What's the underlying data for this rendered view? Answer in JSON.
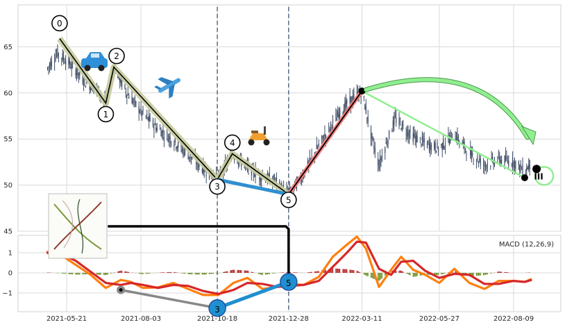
{
  "chart_data": [
    {
      "type": "candlestick",
      "title": "",
      "xlabel": "",
      "ylabel": "",
      "xlim": [
        "2021-04-26",
        "2022-09-05"
      ],
      "ylim": [
        45,
        70
      ],
      "yticks": [
        45,
        50,
        55,
        60,
        65
      ],
      "xticks": [
        "2021-05-21",
        "2021-08-03",
        "2021-10-18",
        "2021-12-28",
        "2022-03-11",
        "2022-05-27",
        "2022-08-09"
      ],
      "grid": true,
      "price_path": [
        [
          "2021-05-01",
          62.5
        ],
        [
          "2021-05-12",
          64.3
        ],
        [
          "2021-05-21",
          63.5
        ],
        [
          "2021-05-31",
          62.3
        ],
        [
          "2021-06-10",
          61.0
        ],
        [
          "2021-06-20",
          60.5
        ],
        [
          "2021-06-30",
          58.9
        ],
        [
          "2021-07-07",
          62.8
        ],
        [
          "2021-07-20",
          60.0
        ],
        [
          "2021-08-03",
          58.0
        ],
        [
          "2021-08-18",
          56.3
        ],
        [
          "2021-09-02",
          55.0
        ],
        [
          "2021-09-17",
          53.5
        ],
        [
          "2021-10-02",
          52.0
        ],
        [
          "2021-10-18",
          50.6
        ],
        [
          "2021-11-02",
          53.4
        ],
        [
          "2021-11-16",
          52.0
        ],
        [
          "2021-11-30",
          51.0
        ],
        [
          "2021-12-14",
          50.5
        ],
        [
          "2021-12-28",
          49.0
        ],
        [
          "2022-01-12",
          51.2
        ],
        [
          "2022-01-27",
          54.3
        ],
        [
          "2022-02-10",
          56.7
        ],
        [
          "2022-02-24",
          58.8
        ],
        [
          "2022-03-11",
          60.2
        ],
        [
          "2022-03-20",
          55.5
        ],
        [
          "2022-03-28",
          52.2
        ],
        [
          "2022-04-13",
          57.2
        ],
        [
          "2022-04-28",
          55.5
        ],
        [
          "2022-05-13",
          54.5
        ],
        [
          "2022-05-27",
          54.0
        ],
        [
          "2022-06-11",
          55.5
        ],
        [
          "2022-06-26",
          53.5
        ],
        [
          "2022-07-11",
          52.2
        ],
        [
          "2022-07-25",
          52.8
        ],
        [
          "2022-08-09",
          52.5
        ],
        [
          "2022-08-20",
          51.5
        ],
        [
          "2022-08-27",
          52.5
        ]
      ],
      "elliott_wave": {
        "points": [
          {
            "label": "0",
            "date": "2021-05-14",
            "price": 65.9
          },
          {
            "label": "1",
            "date": "2021-06-29",
            "price": 58.9
          },
          {
            "label": "2",
            "date": "2021-07-07",
            "price": 62.8
          },
          {
            "label": "3",
            "date": "2021-10-18",
            "price": 50.6
          },
          {
            "label": "4",
            "date": "2021-11-02",
            "price": 53.4
          },
          {
            "label": "5",
            "date": "2021-12-28",
            "price": 49.0
          }
        ],
        "correction": [
          {
            "date": "2021-12-28",
            "price": 49.0
          },
          {
            "date": "2022-03-11",
            "price": 60.2
          },
          {
            "date": "2022-08-20",
            "price": 50.8
          }
        ],
        "end_label": "III",
        "vertical_markers": [
          "2021-10-18",
          "2021-12-28"
        ]
      }
    },
    {
      "type": "macd",
      "title": "MACD (12,26,9)",
      "ylim": [
        -1.8,
        1.8
      ],
      "yticks": [
        -1,
        0,
        1
      ],
      "macd": [
        [
          "2021-05-01",
          1.05
        ],
        [
          "2021-05-15",
          0.9
        ],
        [
          "2021-05-30",
          0.4
        ],
        [
          "2021-06-14",
          -0.1
        ],
        [
          "2021-06-29",
          -0.75
        ],
        [
          "2021-07-14",
          -0.35
        ],
        [
          "2021-07-24",
          -0.45
        ],
        [
          "2021-08-05",
          -0.75
        ],
        [
          "2021-08-20",
          -0.72
        ],
        [
          "2021-09-04",
          -0.5
        ],
        [
          "2021-09-19",
          -0.8
        ],
        [
          "2021-10-04",
          -1.1
        ],
        [
          "2021-10-19",
          -1.1
        ],
        [
          "2021-11-03",
          -0.5
        ],
        [
          "2021-11-17",
          -0.25
        ],
        [
          "2021-12-02",
          -0.8
        ],
        [
          "2021-12-17",
          -0.7
        ],
        [
          "2021-12-28",
          -0.55
        ],
        [
          "2022-01-12",
          -0.6
        ],
        [
          "2022-01-27",
          -0.2
        ],
        [
          "2022-02-10",
          0.8
        ],
        [
          "2022-02-24",
          1.4
        ],
        [
          "2022-03-06",
          1.8
        ],
        [
          "2022-03-15",
          1.2
        ],
        [
          "2022-03-28",
          -0.7
        ],
        [
          "2022-04-09",
          0.15
        ],
        [
          "2022-04-19",
          0.8
        ],
        [
          "2022-05-01",
          0.15
        ],
        [
          "2022-05-13",
          -0.1
        ],
        [
          "2022-05-27",
          -0.5
        ],
        [
          "2022-06-11",
          0.2
        ],
        [
          "2022-06-26",
          -0.5
        ],
        [
          "2022-07-11",
          -0.8
        ],
        [
          "2022-07-25",
          -0.4
        ],
        [
          "2022-08-09",
          -0.4
        ],
        [
          "2022-08-20",
          -0.45
        ],
        [
          "2022-08-27",
          -0.3
        ]
      ],
      "signal": [
        [
          "2021-05-01",
          1.0
        ],
        [
          "2021-05-15",
          0.95
        ],
        [
          "2021-05-30",
          0.6
        ],
        [
          "2021-06-14",
          0.05
        ],
        [
          "2021-06-29",
          -0.5
        ],
        [
          "2021-07-14",
          -0.6
        ],
        [
          "2021-07-24",
          -0.5
        ],
        [
          "2021-08-05",
          -0.6
        ],
        [
          "2021-08-20",
          -0.75
        ],
        [
          "2021-09-04",
          -0.6
        ],
        [
          "2021-09-19",
          -0.65
        ],
        [
          "2021-10-04",
          -0.9
        ],
        [
          "2021-10-19",
          -1.05
        ],
        [
          "2021-11-03",
          -0.85
        ],
        [
          "2021-11-17",
          -0.5
        ],
        [
          "2021-12-02",
          -0.55
        ],
        [
          "2021-12-17",
          -0.7
        ],
        [
          "2021-12-28",
          -0.65
        ],
        [
          "2022-01-12",
          -0.6
        ],
        [
          "2022-01-27",
          -0.4
        ],
        [
          "2022-02-10",
          0.3
        ],
        [
          "2022-02-24",
          1.0
        ],
        [
          "2022-03-06",
          1.55
        ],
        [
          "2022-03-15",
          1.5
        ],
        [
          "2022-03-28",
          0.2
        ],
        [
          "2022-04-09",
          -0.1
        ],
        [
          "2022-04-19",
          0.55
        ],
        [
          "2022-05-01",
          0.6
        ],
        [
          "2022-05-13",
          0.1
        ],
        [
          "2022-05-27",
          -0.25
        ],
        [
          "2022-06-11",
          -0.05
        ],
        [
          "2022-06-26",
          -0.1
        ],
        [
          "2022-07-11",
          -0.55
        ],
        [
          "2022-07-25",
          -0.55
        ],
        [
          "2022-08-09",
          -0.4
        ],
        [
          "2022-08-20",
          -0.45
        ],
        [
          "2022-08-27",
          -0.35
        ]
      ],
      "wave_points": [
        {
          "label": "",
          "date": "2021-07-14",
          "value": -0.85
        },
        {
          "label": "3",
          "date": "2021-10-18",
          "value": -1.75
        },
        {
          "label": "5",
          "date": "2021-12-28",
          "value": -0.45
        }
      ]
    }
  ],
  "colors": {
    "candle": "#3c4a63",
    "wave_main": "#000000",
    "wave_halo": "#c8cca0",
    "wave_3_to_5": "#2f8fd0",
    "rise_line": "#f08080",
    "forecast": "#90ee90",
    "forecast_edge": "#4a9a4a",
    "macd_line": "#ff7f0e",
    "signal_line": "#d62728",
    "hist_pos": "#b22222",
    "hist_neg": "#6b8e23",
    "marker_blue": "#1f8fd0",
    "grid": "#d9d9d9",
    "connector": "#000000"
  },
  "icons": [
    "car-icon",
    "airplane-icon",
    "scooter-icon",
    "wave-thumbnail-icon"
  ]
}
